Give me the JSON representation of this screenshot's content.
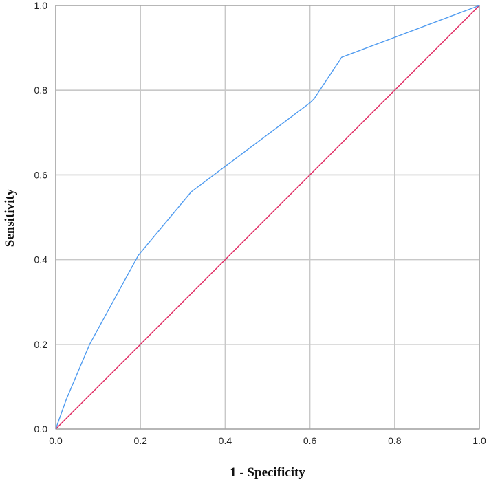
{
  "chart_data": {
    "type": "line",
    "title": "",
    "xlabel": "1 - Specificity",
    "ylabel": "Sensitivity",
    "xlim": [
      0.0,
      1.0
    ],
    "ylim": [
      0.0,
      1.0
    ],
    "x_ticks": [
      "0.0",
      "0.2",
      "0.4",
      "0.6",
      "0.8",
      "1.0"
    ],
    "y_ticks": [
      "0.0",
      "0.2",
      "0.4",
      "0.6",
      "0.8",
      "1.0"
    ],
    "grid": true,
    "series": [
      {
        "color": "#4f9bf0",
        "points": [
          [
            0.0,
            0.0
          ],
          [
            0.025,
            0.07
          ],
          [
            0.08,
            0.2
          ],
          [
            0.195,
            0.41
          ],
          [
            0.32,
            0.56
          ],
          [
            0.6,
            0.77
          ],
          [
            0.61,
            0.78
          ],
          [
            0.675,
            0.878
          ],
          [
            1.0,
            1.0
          ]
        ]
      },
      {
        "color": "#e0245e",
        "points": [
          [
            0.0,
            0.0
          ],
          [
            1.0,
            1.0
          ]
        ]
      }
    ]
  }
}
